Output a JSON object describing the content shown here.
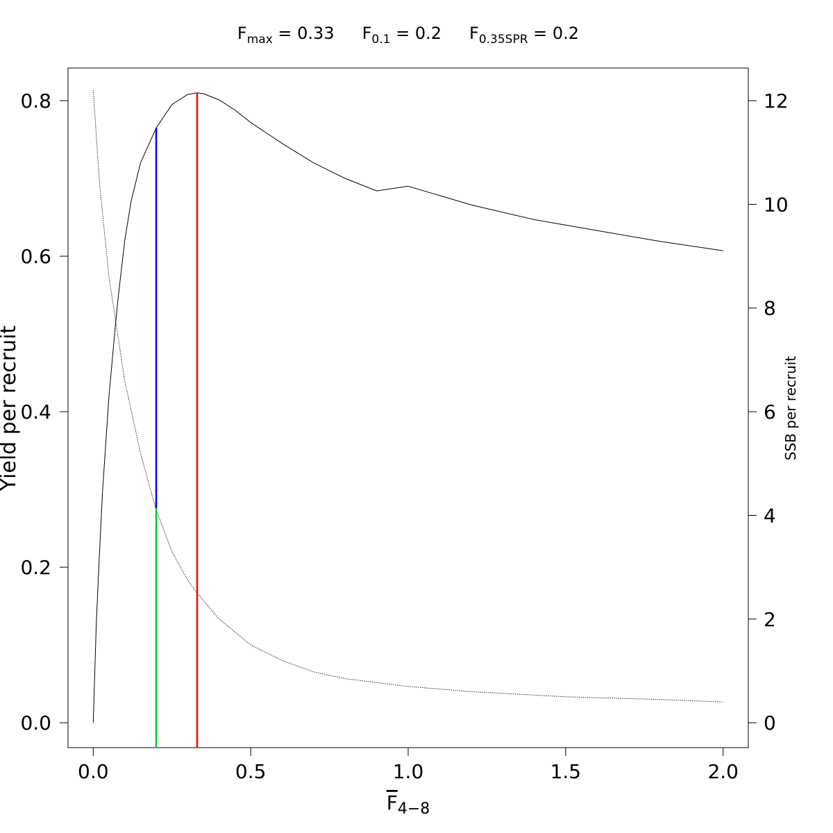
{
  "chart_data": {
    "type": "line",
    "reference_points": [
      {
        "symbol": "F",
        "subscript": "max",
        "equals": " = ",
        "value": "0.33"
      },
      {
        "symbol": "F",
        "subscript": "0.1",
        "equals": " = ",
        "value": "0.2"
      },
      {
        "symbol": "F",
        "subscript": "0.35SPR",
        "equals": " = ",
        "value": "0.2"
      }
    ],
    "xlabel": {
      "symbol": "F",
      "subscript": "4−8"
    },
    "ylabel": "Yield per recruit",
    "y2label": "SSB per recruit",
    "xlim": [
      -0.08,
      2.08
    ],
    "ylim": [
      -0.032,
      0.842
    ],
    "y2lim": [
      -0.48,
      12.63
    ],
    "x_ticks": [
      0.0,
      0.5,
      1.0,
      1.5,
      2.0
    ],
    "x_tick_labels": [
      "0.0",
      "0.5",
      "1.0",
      "1.5",
      "2.0"
    ],
    "y_ticks": [
      0.0,
      0.2,
      0.4,
      0.6,
      0.8
    ],
    "y_tick_labels": [
      "0.0",
      "0.2",
      "0.4",
      "0.6",
      "0.8"
    ],
    "y2_ticks": [
      0,
      2,
      4,
      6,
      8,
      10,
      12
    ],
    "y2_tick_labels": [
      "0",
      "2",
      "4",
      "6",
      "8",
      "10",
      "12"
    ],
    "grid": false,
    "legend": "none",
    "series": [
      {
        "axis": "left",
        "style": "solid",
        "color": "#000000",
        "x": [
          0,
          0.01,
          0.02,
          0.03,
          0.05,
          0.07,
          0.08,
          0.1,
          0.12,
          0.15,
          0.2,
          0.25,
          0.3,
          0.33,
          0.35,
          0.4,
          0.45,
          0.5,
          0.6,
          0.7,
          0.8,
          0.9,
          1.0,
          1.2,
          1.4,
          1.6,
          1.8,
          2.0
        ],
        "values": [
          0,
          0.13,
          0.22,
          0.3,
          0.42,
          0.51,
          0.55,
          0.62,
          0.67,
          0.72,
          0.765,
          0.795,
          0.808,
          0.81,
          0.809,
          0.801,
          0.788,
          0.772,
          0.745,
          0.72,
          0.7,
          0.684,
          0.69,
          0.666,
          0.647,
          0.633,
          0.619,
          0.607
        ]
      },
      {
        "axis": "right",
        "style": "dotted",
        "color": "#000000",
        "x": [
          0,
          0.02,
          0.05,
          0.08,
          0.1,
          0.15,
          0.2,
          0.25,
          0.3,
          0.33,
          0.4,
          0.5,
          0.6,
          0.7,
          0.8,
          1.0,
          1.2,
          1.5,
          1.8,
          2.0
        ],
        "values": [
          12.2,
          10.4,
          8.6,
          7.4,
          6.6,
          5.2,
          4.1,
          3.3,
          2.75,
          2.5,
          2.0,
          1.5,
          1.2,
          0.98,
          0.85,
          0.7,
          0.6,
          0.5,
          0.45,
          0.4
        ]
      }
    ],
    "vertical_lines": [
      {
        "name": "F0.1",
        "x": 0.2,
        "y_from": 0.276,
        "y_to": 0.765,
        "color": "#0000ff"
      },
      {
        "name": "F0.35SPR",
        "x": 0.2,
        "y_from": -0.032,
        "y_to": 0.276,
        "color": "#00cc33"
      },
      {
        "name": "Fmax",
        "x": 0.33,
        "y_from": -0.032,
        "y_to": 0.81,
        "color": "#ff0000"
      }
    ]
  }
}
